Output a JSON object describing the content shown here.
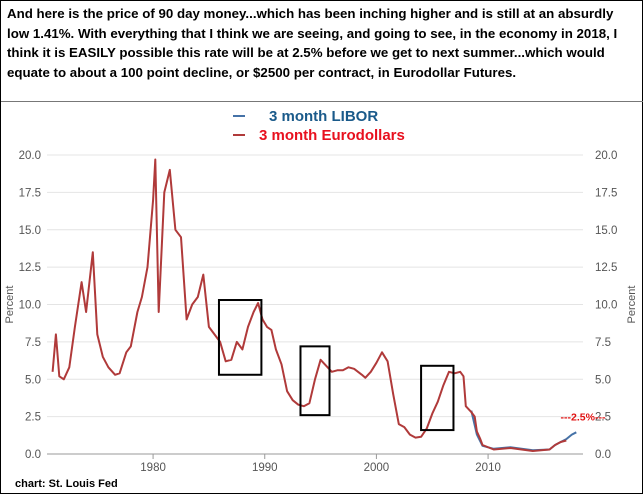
{
  "caption": "And here is the price of 90 day money...which has been inching higher and is still at an absurdly low 1.41%. With everything that I think we are seeing, and going to see, in the economy in 2018, I think it is EASILY possible this rate will be at 2.5% before we get to next summer...which would equate to about a 100 point decline, or $2500 per contract, in Eurodollar Futures.",
  "chart_data": {
    "type": "line",
    "title": "",
    "xlabel": "",
    "ylabel": "Percent",
    "ylabel_right": "Percent",
    "xlim": [
      1970.5,
      2018.5
    ],
    "ylim": [
      0,
      20
    ],
    "x_ticks": [
      1980,
      1990,
      2000,
      2010
    ],
    "y_ticks": [
      "0.0",
      "2.5",
      "5.0",
      "7.5",
      "10.0",
      "12.5",
      "15.0",
      "17.5",
      "20.0"
    ],
    "grid": true,
    "legend_position": "top-center",
    "series": [
      {
        "name": "3 month LIBOR",
        "color": "#4572a7",
        "points": [
          [
            2008.5,
            2.9
          ],
          [
            2009.0,
            1.3
          ],
          [
            2009.5,
            0.55
          ],
          [
            2010.5,
            0.35
          ],
          [
            2012.0,
            0.45
          ],
          [
            2014.0,
            0.25
          ],
          [
            2015.5,
            0.3
          ],
          [
            2016.0,
            0.6
          ],
          [
            2016.5,
            0.8
          ],
          [
            2017.0,
            1.0
          ],
          [
            2017.5,
            1.3
          ],
          [
            2017.9,
            1.45
          ]
        ]
      },
      {
        "name": "3 month Eurodollars",
        "color": "#b03a3a",
        "points": [
          [
            1971.0,
            5.5
          ],
          [
            1971.3,
            8.0
          ],
          [
            1971.6,
            5.2
          ],
          [
            1972.0,
            5.0
          ],
          [
            1972.5,
            5.8
          ],
          [
            1973.0,
            8.5
          ],
          [
            1973.6,
            11.5
          ],
          [
            1974.0,
            9.5
          ],
          [
            1974.6,
            13.5
          ],
          [
            1975.0,
            8.0
          ],
          [
            1975.5,
            6.5
          ],
          [
            1976.0,
            5.8
          ],
          [
            1976.6,
            5.3
          ],
          [
            1977.0,
            5.4
          ],
          [
            1977.6,
            6.8
          ],
          [
            1978.0,
            7.2
          ],
          [
            1978.6,
            9.5
          ],
          [
            1979.0,
            10.5
          ],
          [
            1979.5,
            12.5
          ],
          [
            1980.0,
            17.0
          ],
          [
            1980.2,
            19.7
          ],
          [
            1980.5,
            9.5
          ],
          [
            1981.0,
            17.5
          ],
          [
            1981.5,
            19.0
          ],
          [
            1982.0,
            15.0
          ],
          [
            1982.5,
            14.5
          ],
          [
            1983.0,
            9.0
          ],
          [
            1983.5,
            10.0
          ],
          [
            1984.0,
            10.5
          ],
          [
            1984.5,
            12.0
          ],
          [
            1985.0,
            8.5
          ],
          [
            1985.5,
            8.0
          ],
          [
            1986.0,
            7.5
          ],
          [
            1986.5,
            6.2
          ],
          [
            1987.0,
            6.3
          ],
          [
            1987.5,
            7.5
          ],
          [
            1988.0,
            7.0
          ],
          [
            1988.5,
            8.5
          ],
          [
            1989.0,
            9.5
          ],
          [
            1989.4,
            10.1
          ],
          [
            1989.8,
            9.0
          ],
          [
            1990.2,
            8.5
          ],
          [
            1990.6,
            8.3
          ],
          [
            1991.0,
            7.0
          ],
          [
            1991.5,
            6.0
          ],
          [
            1992.0,
            4.2
          ],
          [
            1992.5,
            3.6
          ],
          [
            1993.0,
            3.3
          ],
          [
            1993.5,
            3.2
          ],
          [
            1994.0,
            3.4
          ],
          [
            1994.5,
            5.0
          ],
          [
            1995.0,
            6.3
          ],
          [
            1995.5,
            5.9
          ],
          [
            1996.0,
            5.5
          ],
          [
            1996.5,
            5.6
          ],
          [
            1997.0,
            5.6
          ],
          [
            1997.5,
            5.8
          ],
          [
            1998.0,
            5.7
          ],
          [
            1998.7,
            5.3
          ],
          [
            1999.0,
            5.1
          ],
          [
            1999.5,
            5.5
          ],
          [
            2000.0,
            6.1
          ],
          [
            2000.5,
            6.8
          ],
          [
            2001.0,
            6.2
          ],
          [
            2001.5,
            4.0
          ],
          [
            2002.0,
            2.0
          ],
          [
            2002.5,
            1.8
          ],
          [
            2003.0,
            1.3
          ],
          [
            2003.5,
            1.1
          ],
          [
            2004.0,
            1.15
          ],
          [
            2004.5,
            1.7
          ],
          [
            2005.0,
            2.7
          ],
          [
            2005.5,
            3.5
          ],
          [
            2006.0,
            4.6
          ],
          [
            2006.5,
            5.5
          ],
          [
            2007.0,
            5.4
          ],
          [
            2007.5,
            5.5
          ],
          [
            2007.8,
            5.2
          ],
          [
            2008.0,
            3.2
          ],
          [
            2008.5,
            2.8
          ],
          [
            2008.8,
            2.5
          ],
          [
            2009.0,
            1.5
          ],
          [
            2009.3,
            1.0
          ],
          [
            2009.5,
            0.6
          ],
          [
            2010.5,
            0.3
          ],
          [
            2012.0,
            0.4
          ],
          [
            2014.0,
            0.2
          ],
          [
            2015.5,
            0.3
          ],
          [
            2016.0,
            0.6
          ],
          [
            2016.5,
            0.8
          ],
          [
            2017.0,
            0.9
          ]
        ]
      }
    ],
    "highlight_boxes": [
      {
        "x": [
          1985.9,
          1989.7
        ],
        "y": [
          5.3,
          10.3
        ]
      },
      {
        "x": [
          1993.2,
          1995.8
        ],
        "y": [
          2.6,
          7.2
        ]
      },
      {
        "x": [
          2004.0,
          2006.9
        ],
        "y": [
          1.6,
          5.9
        ]
      }
    ],
    "annotations": [
      {
        "text": "---2.5%---",
        "x": 2018.5,
        "y": 2.5
      }
    ],
    "credit": "chart: St. Louis Fed"
  }
}
